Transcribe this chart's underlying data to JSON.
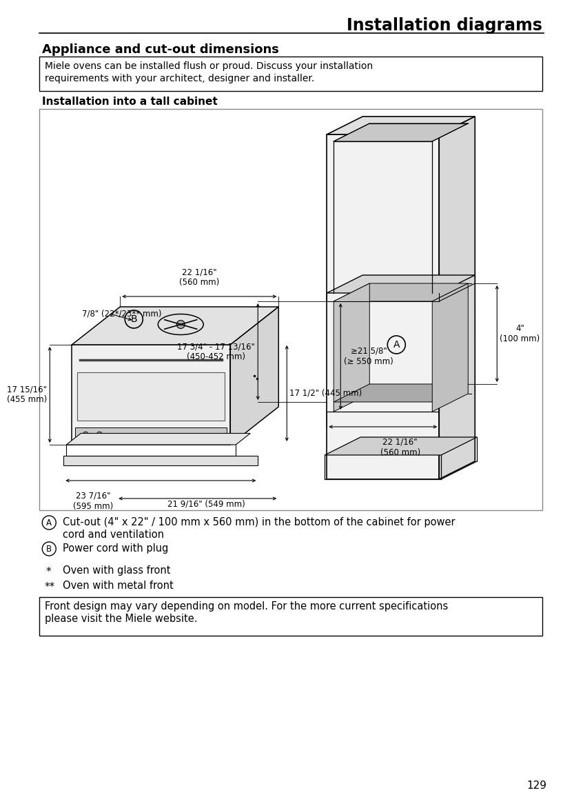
{
  "page_title": "Installation diagrams",
  "page_number": "129",
  "section_title": "Appliance and cut-out dimensions",
  "info_box_text1": "Miele ovens can be installed flush or proud. Discuss your installation",
  "info_box_text2": "requirements with your architect, designer and installer.",
  "subsection_title": "Installation into a tall cabinet",
  "footnote_box_text1": "Front design may vary depending on model. For the more current specifications",
  "footnote_box_text2": "please visit the Miele website.",
  "legend_A": "Cut-out (4\" x 22\" / 100 mm x 560 mm) in the bottom of the cabinet for power",
  "legend_A2": "cord and ventilation",
  "legend_B": "Power cord with plug",
  "legend_star": "Oven with glass front",
  "legend_starstar": "Oven with metal front",
  "bg_color": "#ffffff",
  "text_color": "#000000",
  "dim_22_1_16": "22 1/16\"\n(560 mm)",
  "dim_17_1_2": "17 1/2\" (445 mm)",
  "dim_17_15_16": "17 15/16\"\n(455 mm)",
  "dim_23_7_16": "23 7/16\"\n(595 mm)",
  "dim_21_9_16": "21 9/16\" (549 mm)",
  "dim_17_3_4": "17 3/4\" - 17 13/16\"\n(450-452 mm)",
  "dim_ge_21_5_8": "≥21 5/8\"\n(≥ 550 mm)",
  "dim_4_in": "4\"\n(100 mm)",
  "dim_7_8": "7/8\" (22*/23** mm)"
}
